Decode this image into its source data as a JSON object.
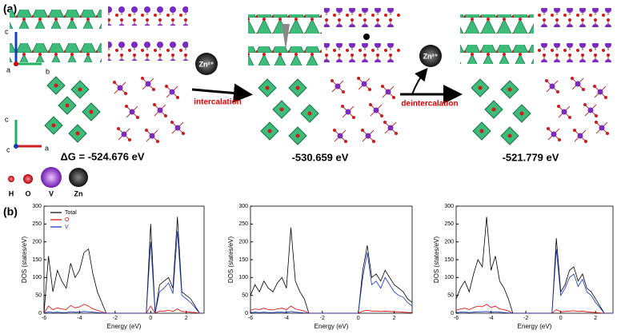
{
  "panel_a": {
    "label": "(a)",
    "axes_top": {
      "c": "c",
      "a": "a",
      "b": "b"
    },
    "axes_bottom": {
      "c": "c",
      "origin": "c",
      "a": "a"
    },
    "ion": "Zn²⁺",
    "step_1": "intercalation",
    "step_2": "deintercalation",
    "energies": [
      "ΔG = -524.676 eV",
      "-530.659 eV",
      "-521.779 eV"
    ],
    "atoms": [
      "H",
      "O",
      "V",
      "Zn"
    ]
  },
  "panel_b": {
    "label": "(b)"
  },
  "chart_data": [
    {
      "type": "line",
      "xlabel": "Energy (eV)",
      "ylabel": "DOS (states/eV)",
      "xlim": [
        -6,
        3
      ],
      "xticks": [
        -6,
        -4,
        -2,
        0,
        2
      ],
      "ylim": [
        0,
        300
      ],
      "yticks": [
        0,
        50,
        100,
        150,
        200,
        250,
        300
      ],
      "x": [
        -6,
        -5.75,
        -5.5,
        -5.25,
        -5,
        -4.75,
        -4.5,
        -4.25,
        -4,
        -3.75,
        -3.5,
        -3.25,
        -3,
        -2.75,
        -2.5,
        -2.25,
        -2,
        -1.75,
        -1.5,
        -1.25,
        -1,
        -0.75,
        -0.5,
        -0.25,
        0,
        0.25,
        0.5,
        0.75,
        1,
        1.25,
        1.5,
        1.75,
        2,
        2.25,
        2.5,
        2.75,
        3
      ],
      "legend": "upper left",
      "series": [
        {
          "name": "Total",
          "color": "#000000",
          "values": [
            0,
            160,
            60,
            120,
            90,
            70,
            140,
            100,
            120,
            170,
            180,
            110,
            60,
            30,
            0,
            0,
            0,
            0,
            0,
            0,
            0,
            0,
            0,
            0,
            250,
            0,
            80,
            90,
            100,
            70,
            270,
            60,
            50,
            40,
            20,
            0,
            0
          ]
        },
        {
          "name": "O",
          "color": "#e00000",
          "values": [
            0,
            20,
            10,
            15,
            12,
            10,
            22,
            15,
            18,
            25,
            20,
            12,
            8,
            4,
            0,
            0,
            0,
            0,
            0,
            0,
            0,
            0,
            0,
            0,
            20,
            0,
            6,
            6,
            8,
            5,
            12,
            5,
            4,
            3,
            2,
            0,
            0
          ]
        },
        {
          "name": "V",
          "color": "#1030c0",
          "values": [
            0,
            4,
            2,
            3,
            2,
            2,
            4,
            3,
            3,
            5,
            4,
            3,
            2,
            1,
            0,
            0,
            0,
            0,
            0,
            0,
            0,
            0,
            0,
            0,
            200,
            0,
            60,
            70,
            85,
            55,
            230,
            50,
            40,
            30,
            15,
            0,
            0
          ]
        }
      ]
    },
    {
      "type": "line",
      "xlabel": "Energy (eV)",
      "ylabel": "DOS (states/eV)",
      "xlim": [
        -6,
        3
      ],
      "xticks": [
        -6,
        -4,
        -2,
        0,
        2
      ],
      "ylim": [
        0,
        300
      ],
      "yticks": [
        0,
        50,
        100,
        150,
        200,
        250,
        300
      ],
      "x": [
        -6,
        -5.75,
        -5.5,
        -5.25,
        -5,
        -4.75,
        -4.5,
        -4.25,
        -4,
        -3.75,
        -3.5,
        -3.25,
        -3,
        -2.75,
        -2.5,
        -2.25,
        -2,
        -1.75,
        -1.5,
        -1.25,
        -1,
        -0.75,
        -0.5,
        -0.25,
        0,
        0.25,
        0.5,
        0.75,
        1,
        1.25,
        1.5,
        1.75,
        2,
        2.25,
        2.5,
        2.75,
        3
      ],
      "series": [
        {
          "color": "#000000",
          "values": [
            50,
            80,
            60,
            90,
            70,
            60,
            85,
            100,
            70,
            240,
            90,
            60,
            40,
            0,
            0,
            0,
            0,
            0,
            0,
            0,
            0,
            0,
            0,
            0,
            0,
            120,
            190,
            100,
            110,
            90,
            120,
            100,
            80,
            70,
            60,
            40,
            30
          ]
        },
        {
          "color": "#e00000",
          "values": [
            8,
            12,
            10,
            14,
            10,
            9,
            12,
            14,
            10,
            20,
            12,
            9,
            6,
            0,
            0,
            0,
            0,
            0,
            0,
            0,
            0,
            0,
            0,
            0,
            0,
            6,
            8,
            6,
            6,
            5,
            6,
            5,
            4,
            4,
            3,
            2,
            2
          ]
        },
        {
          "color": "#1030c0",
          "values": [
            2,
            3,
            2,
            3,
            2,
            2,
            3,
            3,
            2,
            5,
            3,
            2,
            1,
            0,
            0,
            0,
            0,
            0,
            0,
            0,
            0,
            0,
            0,
            0,
            0,
            100,
            170,
            80,
            90,
            70,
            100,
            80,
            60,
            50,
            45,
            30,
            20
          ]
        }
      ]
    },
    {
      "type": "line",
      "xlabel": "Energy (eV)",
      "ylabel": "DOS (states/eV)",
      "xlim": [
        -6,
        3
      ],
      "xticks": [
        -6,
        -4,
        -2,
        0,
        2
      ],
      "ylim": [
        0,
        300
      ],
      "yticks": [
        0,
        50,
        100,
        150,
        200,
        250,
        300
      ],
      "x": [
        -6,
        -5.75,
        -5.5,
        -5.25,
        -5,
        -4.75,
        -4.5,
        -4.25,
        -4,
        -3.75,
        -3.5,
        -3.25,
        -3,
        -2.75,
        -2.5,
        -2.25,
        -2,
        -1.75,
        -1.5,
        -1.25,
        -1,
        -0.75,
        -0.5,
        -0.25,
        0,
        0.25,
        0.5,
        0.75,
        1,
        1.25,
        1.5,
        1.75,
        2,
        2.25,
        2.5,
        2.75,
        3
      ],
      "series": [
        {
          "color": "#000000",
          "values": [
            40,
            70,
            90,
            60,
            110,
            150,
            130,
            270,
            120,
            160,
            90,
            70,
            40,
            0,
            0,
            0,
            0,
            0,
            0,
            0,
            0,
            0,
            0,
            210,
            60,
            80,
            120,
            130,
            90,
            110,
            70,
            60,
            40,
            20,
            0,
            0,
            0
          ]
        },
        {
          "color": "#e00000",
          "values": [
            8,
            12,
            14,
            10,
            16,
            20,
            18,
            25,
            16,
            20,
            12,
            10,
            6,
            0,
            0,
            0,
            0,
            0,
            0,
            0,
            0,
            0,
            0,
            10,
            4,
            5,
            6,
            7,
            5,
            6,
            4,
            3,
            2,
            1,
            0,
            0,
            0
          ]
        },
        {
          "color": "#1030c0",
          "values": [
            2,
            3,
            3,
            2,
            3,
            4,
            4,
            5,
            3,
            4,
            3,
            2,
            1,
            0,
            0,
            0,
            0,
            0,
            0,
            0,
            0,
            0,
            0,
            180,
            50,
            70,
            100,
            110,
            75,
            95,
            60,
            50,
            30,
            15,
            0,
            0,
            0
          ]
        }
      ]
    }
  ]
}
